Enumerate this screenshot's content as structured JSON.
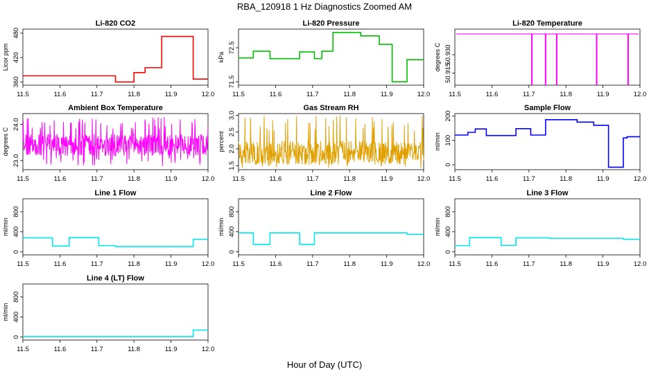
{
  "figure": {
    "title": "RBA_120918  1 Hz Diagnostics Zoomed AM",
    "xlabel": "Hour of Day (UTC)"
  },
  "chart_data": [
    {
      "type": "line",
      "title": "Li-820 CO2",
      "ylabel": "Licor ppm",
      "color": "#ff0000",
      "xlim": [
        11.5,
        12.0
      ],
      "ylim": [
        352,
        490
      ],
      "xticks": [
        "11.5",
        "11.6",
        "11.7",
        "11.8",
        "11.9",
        "12.0"
      ],
      "yticks": [
        "360",
        "420",
        "480"
      ],
      "x": [
        11.5,
        11.75,
        11.75,
        11.8,
        11.8,
        11.83,
        11.83,
        11.875,
        11.875,
        11.96,
        11.96,
        12.0
      ],
      "y": [
        375,
        375,
        360,
        360,
        383,
        383,
        395,
        395,
        472,
        472,
        367,
        367
      ]
    },
    {
      "type": "line",
      "title": "Li-820 Pressure",
      "ylabel": "kPa",
      "color": "#00c000",
      "xlim": [
        11.5,
        12.0
      ],
      "ylim": [
        71.4,
        73.05
      ],
      "xticks": [
        "11.5",
        "11.6",
        "11.7",
        "11.8",
        "11.9",
        "12.0"
      ],
      "yticks": [
        "71.5",
        "72.5"
      ],
      "x": [
        11.5,
        11.54,
        11.54,
        11.585,
        11.585,
        11.665,
        11.665,
        11.705,
        11.705,
        11.725,
        11.725,
        11.755,
        11.755,
        11.83,
        11.83,
        11.88,
        11.88,
        11.915,
        11.915,
        11.955,
        11.955,
        12.0
      ],
      "y": [
        72.2,
        72.2,
        72.4,
        72.4,
        72.18,
        72.18,
        72.38,
        72.38,
        72.18,
        72.18,
        72.4,
        72.4,
        72.95,
        72.95,
        72.85,
        72.85,
        72.6,
        72.6,
        71.5,
        71.5,
        72.15,
        72.15
      ]
    },
    {
      "type": "line",
      "title": "Li-820 Temperature",
      "ylabel": "degrees C",
      "color": "#ff00ff",
      "xlim": [
        11.5,
        12.0
      ],
      "ylim": [
        50.905,
        50.951
      ],
      "xticks": [
        "11.5",
        "11.6",
        "11.7",
        "11.8",
        "11.9",
        "12.0"
      ],
      "yticks": [
        "50.915",
        "50.930"
      ],
      "baseline": 50.947,
      "x": [
        11.708,
        11.745,
        11.775,
        11.883,
        11.968
      ],
      "y": [
        50.905,
        50.905,
        50.905,
        50.905,
        50.905
      ]
    },
    {
      "type": "line",
      "title": "Ambient Box Temperature",
      "ylabel": "degrees C",
      "color": "#ff00ff",
      "xlim": [
        11.5,
        12.0
      ],
      "ylim": [
        22.75,
        24.3
      ],
      "xticks": [
        "11.5",
        "11.6",
        "11.7",
        "11.8",
        "11.9",
        "12.0"
      ],
      "yticks": [
        "23.0",
        "24.0"
      ],
      "noise": {
        "center": 23.4,
        "low": 22.85,
        "high": 24.2
      }
    },
    {
      "type": "line",
      "title": "Gas Stream RH",
      "ylabel": "percent",
      "color": "#e0a000",
      "xlim": [
        11.5,
        12.0
      ],
      "ylim": [
        1.38,
        3.05
      ],
      "xticks": [
        "11.5",
        "11.6",
        "11.7",
        "11.8",
        "11.9",
        "12.0"
      ],
      "yticks": [
        "1.5",
        "2.0",
        "2.5",
        "3.0"
      ],
      "noise": {
        "center": 1.85,
        "low": 1.42,
        "high": 3.0
      }
    },
    {
      "type": "line",
      "title": "Sample Flow",
      "ylabel": "ml/min",
      "color": "#0000ff",
      "xlim": [
        11.5,
        12.0
      ],
      "ylim": [
        -20,
        210
      ],
      "xticks": [
        "11.5",
        "11.6",
        "11.7",
        "11.8",
        "11.9",
        "12.0"
      ],
      "yticks": [
        "0",
        "100",
        "200"
      ],
      "x": [
        11.5,
        11.535,
        11.535,
        11.555,
        11.555,
        11.585,
        11.585,
        11.665,
        11.665,
        11.705,
        11.705,
        11.745,
        11.745,
        11.83,
        11.83,
        11.875,
        11.875,
        11.915,
        11.915,
        11.955,
        11.955,
        11.965,
        11.965,
        12.0
      ],
      "y": [
        122,
        122,
        133,
        133,
        147,
        147,
        120,
        120,
        148,
        148,
        122,
        122,
        185,
        185,
        175,
        175,
        162,
        162,
        -10,
        -10,
        110,
        110,
        115,
        115
      ]
    },
    {
      "type": "line",
      "title": "Line 1 Flow",
      "ylabel": "ml/min",
      "color": "#00e5ee",
      "xlim": [
        11.5,
        12.0
      ],
      "ylim": [
        -60,
        1060
      ],
      "xticks": [
        "11.5",
        "11.6",
        "11.7",
        "11.8",
        "11.9",
        "12.0"
      ],
      "yticks": [
        "0",
        "400",
        "800"
      ],
      "x": [
        11.5,
        11.58,
        11.58,
        11.625,
        11.625,
        11.705,
        11.705,
        11.75,
        11.75,
        11.96,
        11.96,
        12.0
      ],
      "y": [
        280,
        280,
        115,
        115,
        285,
        285,
        125,
        125,
        105,
        105,
        250,
        250
      ]
    },
    {
      "type": "line",
      "title": "Line 2 Flow",
      "ylabel": "ml/min",
      "color": "#00e5ee",
      "xlim": [
        11.5,
        12.0
      ],
      "ylim": [
        -60,
        1060
      ],
      "xticks": [
        "11.5",
        "11.6",
        "11.7",
        "11.8",
        "11.9",
        "12.0"
      ],
      "yticks": [
        "0",
        "400",
        "800"
      ],
      "x": [
        11.5,
        11.54,
        11.54,
        11.585,
        11.585,
        11.665,
        11.665,
        11.705,
        11.705,
        11.955,
        11.955,
        12.0
      ],
      "y": [
        380,
        380,
        150,
        150,
        380,
        380,
        150,
        150,
        380,
        380,
        350,
        350
      ]
    },
    {
      "type": "line",
      "title": "Line 3 Flow",
      "ylabel": "ml/min",
      "color": "#00e5ee",
      "xlim": [
        11.5,
        12.0
      ],
      "ylim": [
        -60,
        1060
      ],
      "xticks": [
        "11.5",
        "11.6",
        "11.7",
        "11.8",
        "11.9",
        "12.0"
      ],
      "yticks": [
        "0",
        "400",
        "800"
      ],
      "x": [
        11.5,
        11.54,
        11.54,
        11.625,
        11.625,
        11.665,
        11.665,
        11.755,
        11.755,
        11.955,
        11.955,
        12.0
      ],
      "y": [
        125,
        125,
        285,
        285,
        130,
        130,
        280,
        280,
        270,
        270,
        250,
        250
      ]
    },
    {
      "type": "line",
      "title": "Line 4 (LT) Flow",
      "ylabel": "ml/min",
      "color": "#00e5ee",
      "xlim": [
        11.5,
        12.0
      ],
      "ylim": [
        -60,
        1060
      ],
      "xticks": [
        "11.5",
        "11.6",
        "11.7",
        "11.8",
        "11.9",
        "12.0"
      ],
      "yticks": [
        "0",
        "400",
        "800"
      ],
      "x": [
        11.5,
        11.96,
        11.96,
        12.0
      ],
      "y": [
        10,
        10,
        140,
        140
      ]
    }
  ]
}
